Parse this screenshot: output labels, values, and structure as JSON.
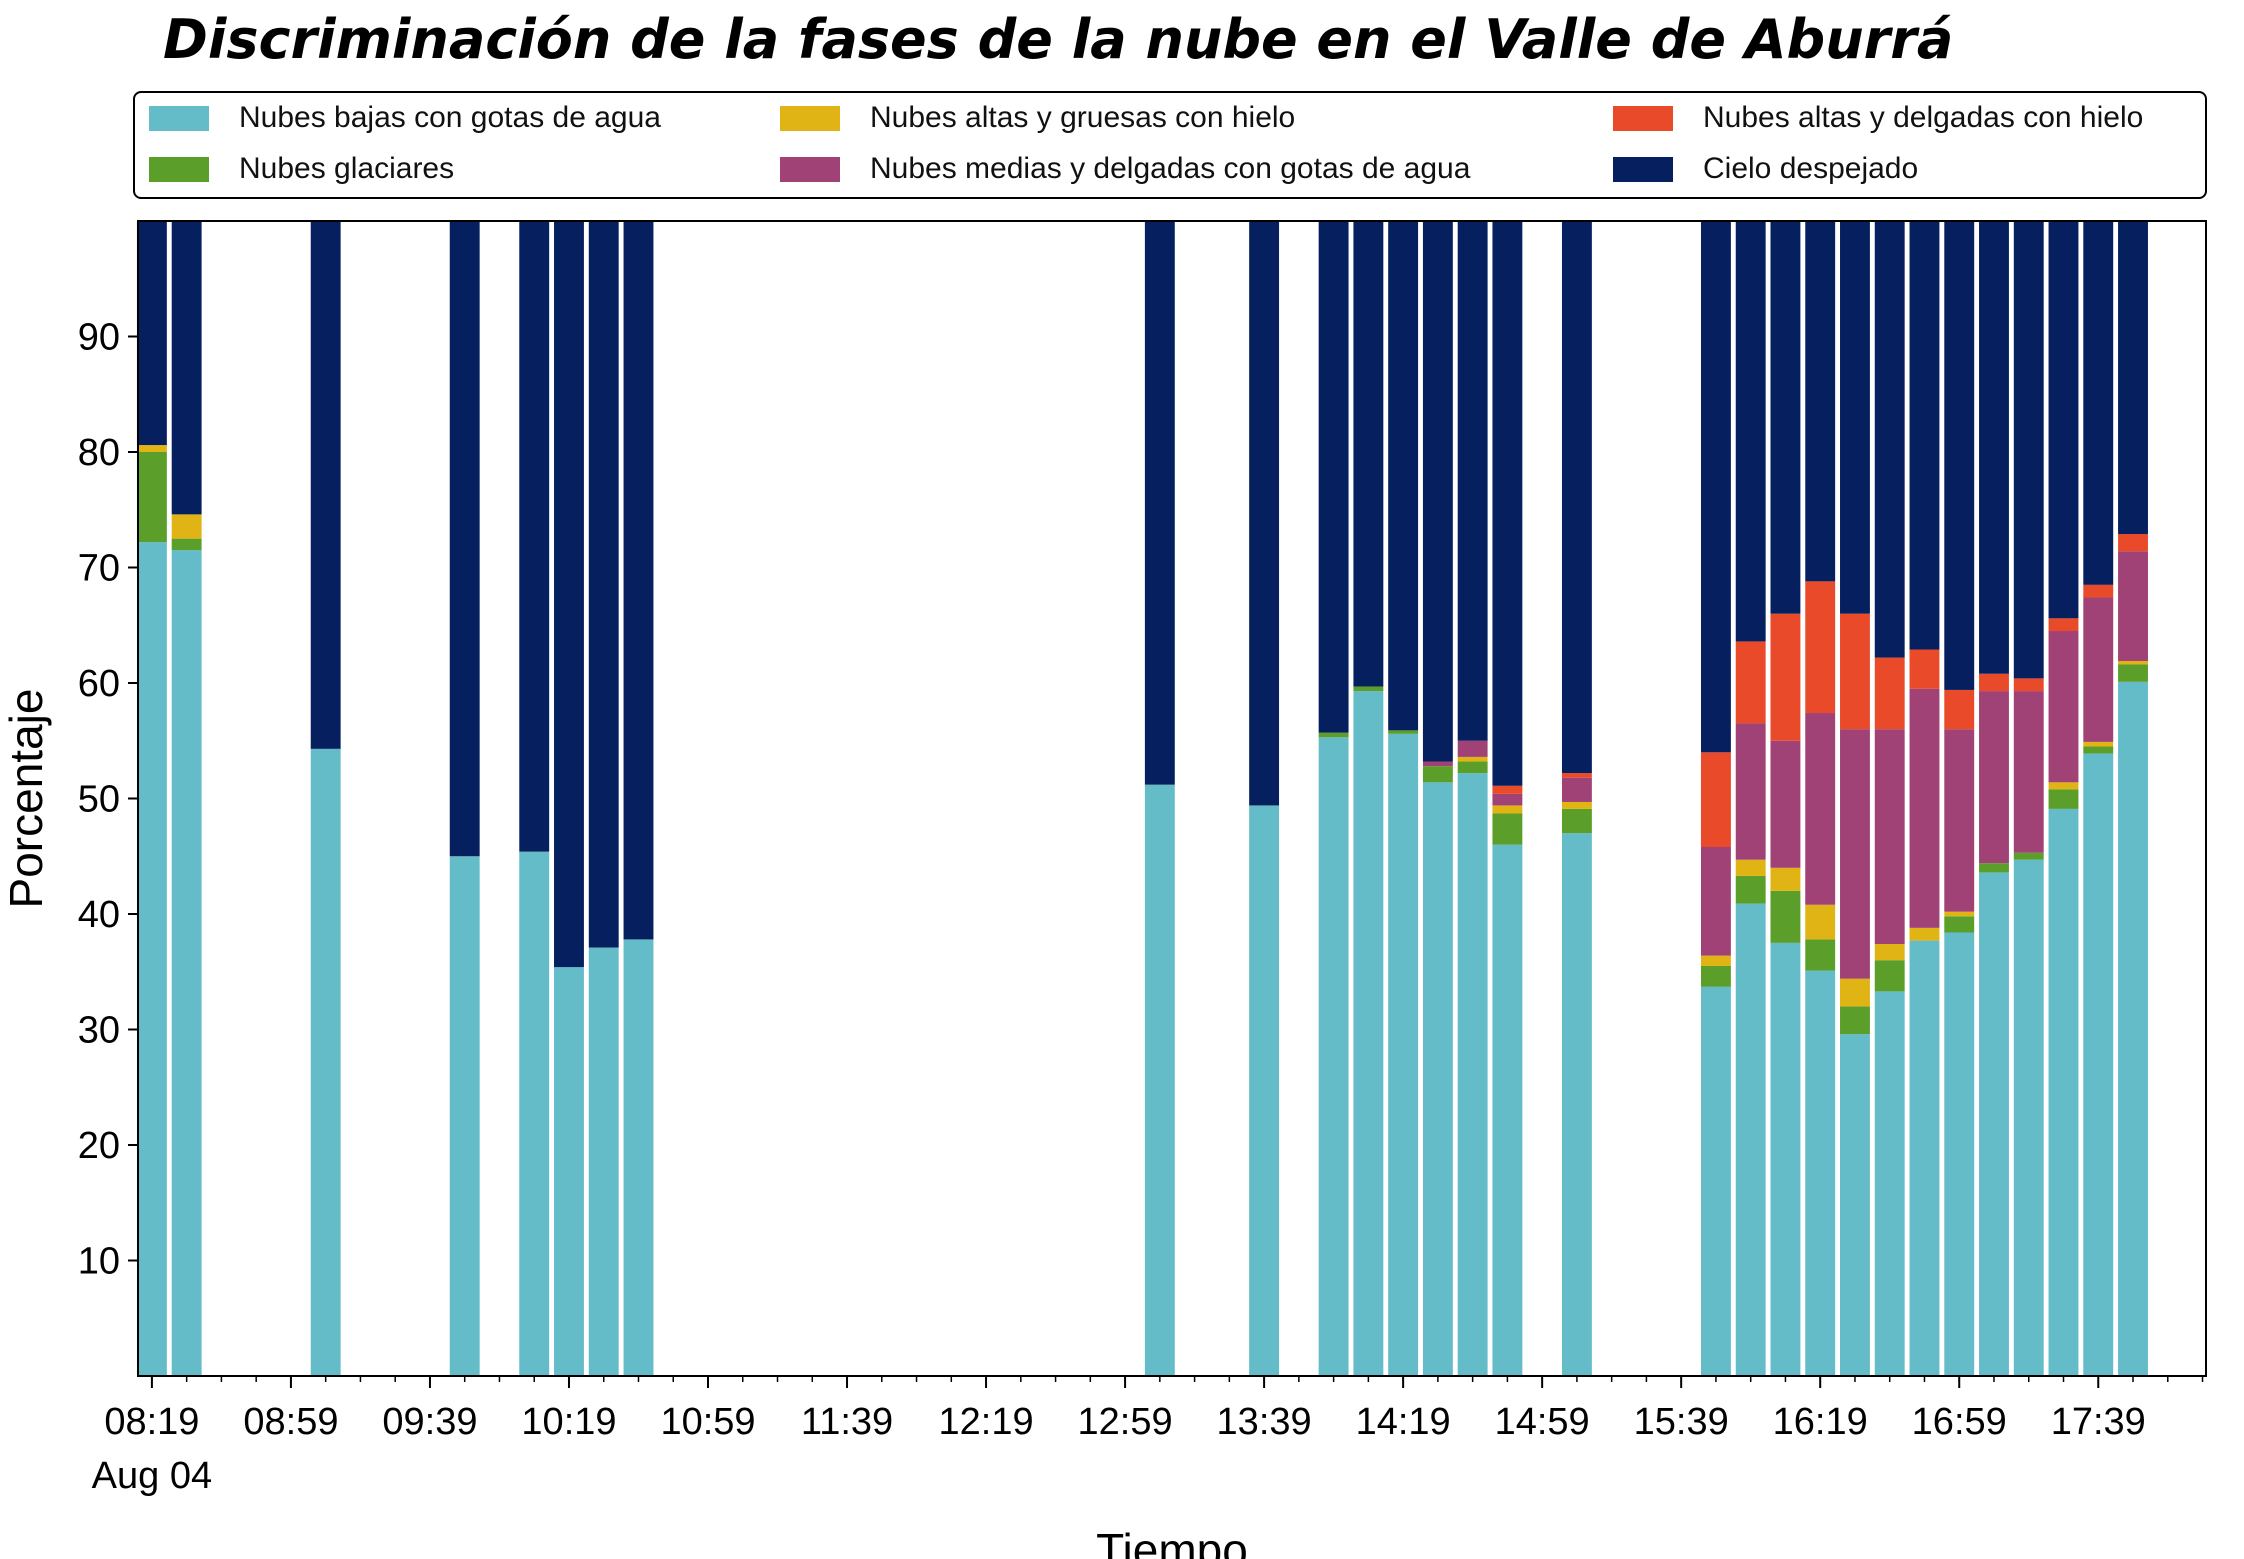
{
  "title": "Discriminación de la fases de la nube en el Valle de Aburrá",
  "legend": [
    {
      "name": "Nubes bajas con gotas de agua",
      "color": "#64bcc8"
    },
    {
      "name": "Nubes glaciares",
      "color": "#5b9e2a"
    },
    {
      "name": "Nubes altas y gruesas con hielo",
      "color": "#e0b414"
    },
    {
      "name": "Nubes medias y delgadas con gotas de agua",
      "color": "#a04276"
    },
    {
      "name": "Nubes altas y delgadas con hielo",
      "color": "#e84a2a"
    },
    {
      "name": "Cielo despejado",
      "color": "#061f5e"
    }
  ],
  "chart_data": {
    "type": "bar",
    "stacked": true,
    "title": "Discriminación de la fases de la nube en el Valle de Aburrá",
    "xlabel": "Tiempo",
    "ylabel": "Porcentaje",
    "ylim": [
      0,
      100
    ],
    "yticks": [
      10,
      20,
      30,
      40,
      50,
      60,
      70,
      80,
      90
    ],
    "xlim": [
      "08:15",
      "18:10"
    ],
    "xticks": [
      "08:19",
      "08:59",
      "09:39",
      "10:19",
      "10:59",
      "11:39",
      "12:19",
      "12:59",
      "13:39",
      "14:19",
      "14:59",
      "15:39",
      "16:19",
      "16:59",
      "17:39"
    ],
    "xtick_sublabel": "Aug 04",
    "grid": false,
    "legend_position": "top",
    "x": [
      "08:19",
      "08:29",
      "09:09",
      "09:49",
      "10:09",
      "10:19",
      "10:29",
      "10:39",
      "13:09",
      "13:39",
      "13:59",
      "14:09",
      "14:19",
      "14:29",
      "14:39",
      "14:49",
      "15:09",
      "15:49",
      "15:59",
      "16:09",
      "16:19",
      "16:29",
      "16:39",
      "16:49",
      "16:59",
      "17:09",
      "17:19",
      "17:29",
      "17:39",
      "17:49"
    ],
    "series": [
      {
        "name": "Nubes bajas con gotas de agua",
        "color": "#64bcc8",
        "values": [
          72.2,
          71.5,
          54.3,
          45.0,
          45.4,
          35.4,
          37.1,
          37.8,
          51.2,
          49.4,
          55.3,
          59.3,
          55.6,
          51.4,
          52.2,
          46.0,
          47.0,
          33.7,
          40.9,
          37.5,
          35.1,
          29.6,
          33.3,
          37.7,
          38.4,
          43.6,
          44.7,
          49.1,
          53.9,
          60.1
        ]
      },
      {
        "name": "Nubes glaciares",
        "color": "#5b9e2a",
        "values": [
          7.8,
          1.0,
          0,
          0,
          0,
          0,
          0,
          0,
          0,
          0,
          0.4,
          0.4,
          0.3,
          1.4,
          1.0,
          2.7,
          2.1,
          1.8,
          2.4,
          4.5,
          2.7,
          2.4,
          2.7,
          0,
          1.4,
          0.8,
          0.6,
          1.7,
          0.6,
          1.5
        ]
      },
      {
        "name": "Nubes altas y gruesas con hielo",
        "color": "#e0b414",
        "values": [
          0.6,
          2.1,
          0,
          0,
          0,
          0,
          0,
          0,
          0,
          0,
          0,
          0,
          0,
          0,
          0.4,
          0.7,
          0.6,
          0.9,
          1.4,
          2.0,
          3.0,
          2.4,
          1.4,
          1.1,
          0.4,
          0,
          0,
          0.6,
          0.4,
          0.3
        ]
      },
      {
        "name": "Nubes medias y delgadas con gotas de agua",
        "color": "#a04276",
        "values": [
          0,
          0,
          0,
          0,
          0,
          0,
          0,
          0,
          0,
          0,
          0,
          0,
          0,
          0.4,
          1.4,
          1.0,
          2.1,
          9.4,
          11.8,
          11.0,
          16.6,
          21.6,
          18.6,
          20.7,
          15.8,
          14.9,
          14.0,
          13.1,
          12.5,
          9.5
        ]
      },
      {
        "name": "Nubes altas y delgadas con hielo",
        "color": "#e84a2a",
        "values": [
          0,
          0,
          0,
          0,
          0,
          0,
          0,
          0,
          0,
          0,
          0,
          0,
          0,
          0,
          0,
          0.7,
          0.4,
          8.2,
          7.1,
          11.0,
          11.4,
          10.0,
          6.2,
          3.4,
          3.4,
          1.5,
          1.1,
          1.1,
          1.1,
          1.5
        ]
      },
      {
        "name": "Cielo despejado",
        "color": "#061f5e",
        "values": [
          19.4,
          25.4,
          45.7,
          55.0,
          54.6,
          64.6,
          62.9,
          62.2,
          48.8,
          50.6,
          44.3,
          40.3,
          44.1,
          46.8,
          45.0,
          48.9,
          47.8,
          46.0,
          36.4,
          34.0,
          31.2,
          34.0,
          37.8,
          37.1,
          40.6,
          39.2,
          39.6,
          34.4,
          31.5,
          27.1
        ]
      }
    ]
  }
}
